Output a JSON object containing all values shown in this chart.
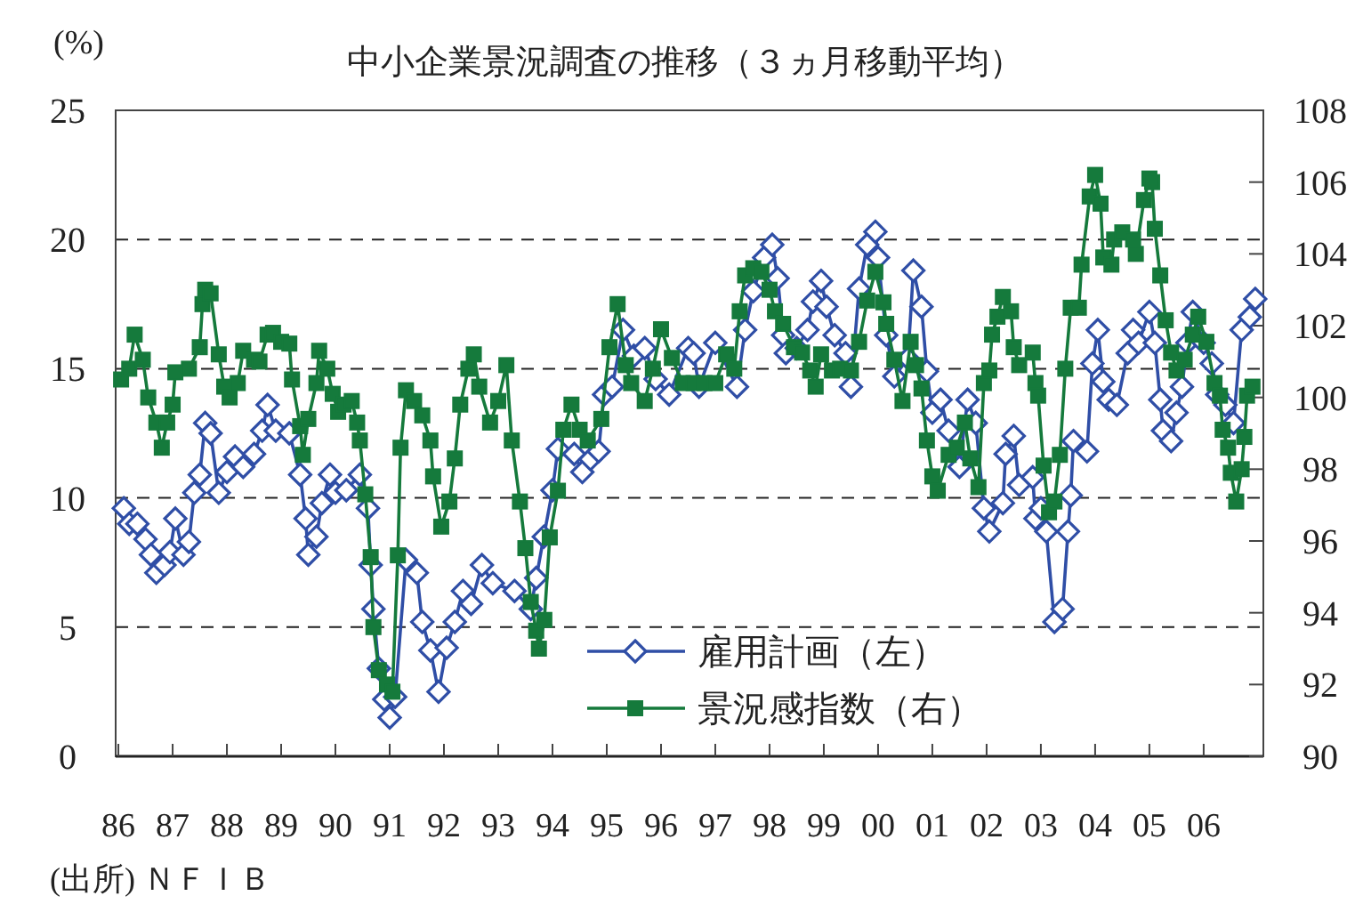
{
  "chart_data": {
    "type": "line",
    "title": "中小企業景況調査の推移（３ヵ月移動平均）",
    "ylabel": "(%)",
    "annotations": [
      "(出所) ＮＦＩＢ"
    ],
    "xlim": [
      1985.95,
      2007.1
    ],
    "xticks": [
      {
        "value": 1986,
        "label": "86"
      },
      {
        "value": 1987,
        "label": "87"
      },
      {
        "value": 1988,
        "label": "88"
      },
      {
        "value": 1989,
        "label": "89"
      },
      {
        "value": 1990,
        "label": "90"
      },
      {
        "value": 1991,
        "label": "91"
      },
      {
        "value": 1992,
        "label": "92"
      },
      {
        "value": 1993,
        "label": "93"
      },
      {
        "value": 1994,
        "label": "94"
      },
      {
        "value": 1995,
        "label": "95"
      },
      {
        "value": 1996,
        "label": "96"
      },
      {
        "value": 1997,
        "label": "97"
      },
      {
        "value": 1998,
        "label": "98"
      },
      {
        "value": 1999,
        "label": "99"
      },
      {
        "value": 2000,
        "label": "00"
      },
      {
        "value": 2001,
        "label": "01"
      },
      {
        "value": 2002,
        "label": "02"
      },
      {
        "value": 2003,
        "label": "03"
      },
      {
        "value": 2004,
        "label": "04"
      },
      {
        "value": 2005,
        "label": "05"
      },
      {
        "value": 2006,
        "label": "06"
      }
    ],
    "ylim": [
      0,
      25
    ],
    "yticks": [
      0,
      5,
      10,
      15,
      20,
      25
    ],
    "y2lim": [
      90,
      108
    ],
    "y2ticks": [
      90,
      92,
      94,
      96,
      98,
      100,
      102,
      104,
      106,
      108
    ],
    "grid": "y",
    "legend": "bottom",
    "series": [
      {
        "name": "雇用計画（左）",
        "color": "#2f4ea6",
        "marker": "diamond",
        "x": [
          1986.1,
          1986.2,
          1986.35,
          1986.5,
          1986.6,
          1986.7,
          1986.85,
          1986.95,
          1987.05,
          1987.2,
          1987.3,
          1987.4,
          1987.5,
          1987.6,
          1987.7,
          1987.85,
          1988.0,
          1988.15,
          1988.3,
          1988.5,
          1988.65,
          1988.75,
          1988.9,
          1989.15,
          1989.35,
          1989.45,
          1989.5,
          1989.65,
          1989.75,
          1989.9,
          1990.0,
          1990.2,
          1990.45,
          1990.6,
          1990.65,
          1990.7,
          1990.8,
          1990.9,
          1991.0,
          1991.1,
          1991.3,
          1991.5,
          1991.6,
          1991.75,
          1991.9,
          1992.05,
          1992.2,
          1992.35,
          1992.5,
          1992.7,
          1992.9,
          1993.3,
          1993.6,
          1993.7,
          1993.84,
          1994.0,
          1994.1,
          1994.4,
          1994.55,
          1994.7,
          1994.85,
          1994.95,
          1995.1,
          1995.3,
          1995.5,
          1995.7,
          1995.9,
          1996.15,
          1996.5,
          1996.6,
          1996.7,
          1997.0,
          1997.4,
          1997.55,
          1997.7,
          1997.9,
          1998.05,
          1998.15,
          1998.25,
          1998.3,
          1998.5,
          1998.7,
          1998.8,
          1998.95,
          1999.05,
          1999.2,
          1999.4,
          1999.5,
          1999.65,
          1999.8,
          1999.95,
          2000.0,
          2000.15,
          2000.3,
          2000.55,
          2000.65,
          2000.8,
          2000.9,
          2001.0,
          2001.15,
          2001.3,
          2001.5,
          2001.65,
          2001.8,
          2001.95,
          2002.05,
          2002.3,
          2002.35,
          2002.5,
          2002.6,
          2002.85,
          2002.9,
          2003.0,
          2003.1,
          2003.25,
          2003.4,
          2003.5,
          2003.55,
          2003.6,
          2003.85,
          2003.95,
          2004.05,
          2004.15,
          2004.25,
          2004.4,
          2004.6,
          2004.7,
          2004.8,
          2005.0,
          2005.1,
          2005.2,
          2005.25,
          2005.4,
          2005.5,
          2005.6,
          2005.7,
          2005.8,
          2006.0,
          2006.15,
          2006.25,
          2006.4,
          2006.55,
          2006.7,
          2006.85,
          2006.95
        ],
        "values": [
          9.6,
          9.0,
          9.0,
          8.4,
          7.8,
          7.1,
          7.4,
          7.9,
          9.2,
          7.8,
          8.3,
          10.2,
          10.9,
          12.9,
          12.5,
          10.2,
          11.0,
          11.6,
          11.2,
          11.7,
          12.6,
          13.6,
          12.6,
          12.5,
          10.9,
          9.2,
          7.8,
          8.5,
          9.8,
          10.9,
          10.2,
          10.3,
          10.9,
          9.6,
          7.4,
          5.7,
          3.4,
          2.2,
          1.5,
          2.3,
          7.6,
          7.1,
          5.2,
          4.1,
          2.5,
          4.2,
          5.2,
          6.4,
          5.9,
          7.4,
          6.7,
          6.4,
          5.7,
          6.9,
          8.5,
          10.3,
          11.9,
          11.7,
          11.0,
          11.5,
          11.8,
          14.0,
          14.3,
          16.5,
          15.5,
          15.8,
          14.6,
          14.0,
          15.8,
          15.6,
          14.3,
          16.0,
          14.3,
          16.5,
          18.0,
          19.3,
          19.8,
          18.5,
          16.3,
          15.6,
          15.8,
          16.5,
          17.6,
          18.4,
          17.4,
          16.3,
          15.6,
          14.3,
          18.1,
          19.8,
          20.3,
          19.3,
          16.3,
          14.7,
          15.4,
          18.8,
          17.4,
          14.9,
          13.3,
          13.8,
          12.6,
          11.2,
          13.8,
          12.9,
          9.6,
          8.7,
          9.8,
          11.7,
          12.4,
          10.5,
          10.8,
          9.2,
          9.6,
          8.7,
          5.2,
          5.7,
          8.7,
          10.1,
          12.2,
          11.8,
          15.2,
          16.5,
          14.5,
          13.8,
          13.6,
          15.6,
          16.5,
          16.0,
          17.2,
          16.0,
          13.8,
          12.6,
          12.2,
          13.3,
          14.3,
          16.0,
          17.2,
          16.0,
          15.2,
          14.0,
          13.6,
          12.9,
          16.5,
          17.0,
          17.7
        ]
      },
      {
        "name": "景況感指数（右）",
        "color": "#157a3c",
        "marker": "square",
        "axis": "y2",
        "x": [
          1986.05,
          1986.2,
          1986.3,
          1986.45,
          1986.55,
          1986.7,
          1986.8,
          1986.9,
          1987.0,
          1987.05,
          1987.3,
          1987.5,
          1987.55,
          1987.6,
          1987.7,
          1987.85,
          1987.95,
          1988.05,
          1988.2,
          1988.3,
          1988.5,
          1988.6,
          1988.75,
          1988.85,
          1989.0,
          1989.15,
          1989.2,
          1989.35,
          1989.4,
          1989.5,
          1989.65,
          1989.7,
          1989.85,
          1989.95,
          1990.05,
          1990.15,
          1990.3,
          1990.4,
          1990.45,
          1990.55,
          1990.65,
          1990.7,
          1990.8,
          1990.95,
          1991.05,
          1991.15,
          1991.2,
          1991.3,
          1991.45,
          1991.6,
          1991.75,
          1991.8,
          1991.95,
          1992.1,
          1992.2,
          1992.3,
          1992.45,
          1992.55,
          1992.65,
          1992.85,
          1993.0,
          1993.15,
          1993.25,
          1993.4,
          1993.5,
          1993.6,
          1993.7,
          1993.75,
          1993.85,
          1993.95,
          1994.1,
          1994.2,
          1994.35,
          1994.5,
          1994.65,
          1994.9,
          1995.05,
          1995.2,
          1995.35,
          1995.45,
          1995.7,
          1995.85,
          1996.0,
          1996.2,
          1996.4,
          1996.6,
          1996.8,
          1997.0,
          1997.2,
          1997.35,
          1997.45,
          1997.55,
          1997.7,
          1997.85,
          1998.0,
          1998.1,
          1998.25,
          1998.45,
          1998.6,
          1998.75,
          1998.85,
          1998.95,
          1999.15,
          1999.3,
          1999.5,
          1999.65,
          1999.8,
          1999.95,
          2000.1,
          2000.15,
          2000.3,
          2000.45,
          2000.6,
          2000.7,
          2000.8,
          2000.9,
          2001.0,
          2001.1,
          2001.3,
          2001.45,
          2001.6,
          2001.7,
          2001.85,
          2001.95,
          2002.05,
          2002.1,
          2002.2,
          2002.3,
          2002.45,
          2002.5,
          2002.6,
          2002.85,
          2002.9,
          2002.95,
          2003.05,
          2003.15,
          2003.25,
          2003.35,
          2003.45,
          2003.55,
          2003.7,
          2003.75,
          2003.9,
          2004.0,
          2004.1,
          2004.15,
          2004.3,
          2004.35,
          2004.5,
          2004.7,
          2004.75,
          2004.9,
          2005.0,
          2005.05,
          2005.1,
          2005.2,
          2005.3,
          2005.4,
          2005.5,
          2005.65,
          2005.8,
          2005.9,
          2006.05,
          2006.2,
          2006.3,
          2006.35,
          2006.45,
          2006.5,
          2006.6,
          2006.7,
          2006.75,
          2006.8,
          2006.9
        ],
        "values": [
          100.5,
          100.8,
          101.75,
          101.05,
          100.0,
          99.3,
          98.6,
          99.3,
          99.8,
          100.7,
          100.8,
          101.4,
          102.6,
          103.0,
          102.9,
          101.2,
          100.3,
          100.0,
          100.4,
          101.3,
          101.05,
          101.0,
          101.75,
          101.8,
          101.55,
          101.5,
          100.5,
          99.2,
          98.4,
          99.4,
          100.4,
          101.3,
          100.8,
          100.1,
          99.6,
          99.8,
          99.9,
          99.3,
          98.8,
          97.3,
          95.55,
          93.6,
          92.4,
          92.0,
          91.8,
          95.6,
          98.6,
          100.2,
          99.9,
          99.5,
          98.8,
          97.8,
          96.4,
          97.1,
          98.3,
          99.8,
          100.8,
          101.2,
          100.3,
          99.3,
          99.9,
          100.9,
          98.8,
          97.1,
          95.8,
          94.3,
          93.5,
          93.0,
          93.8,
          96.1,
          97.4,
          99.1,
          99.8,
          99.1,
          98.8,
          99.4,
          101.4,
          102.6,
          100.9,
          100.4,
          99.9,
          100.8,
          101.9,
          101.1,
          100.4,
          100.4,
          100.4,
          100.4,
          101.2,
          100.8,
          102.4,
          103.4,
          103.6,
          103.5,
          103.0,
          102.4,
          102.05,
          101.4,
          101.25,
          100.75,
          100.3,
          101.2,
          100.75,
          100.8,
          100.75,
          101.55,
          102.7,
          103.5,
          102.65,
          102.05,
          101.05,
          99.9,
          101.55,
          100.9,
          100.25,
          98.8,
          97.8,
          97.4,
          98.4,
          98.6,
          99.3,
          98.3,
          97.5,
          100.4,
          100.75,
          101.75,
          102.25,
          102.8,
          102.4,
          101.4,
          100.9,
          101.25,
          100.4,
          100.05,
          98.1,
          96.8,
          97.1,
          98.4,
          100.8,
          102.5,
          102.5,
          103.7,
          105.6,
          106.2,
          105.4,
          103.9,
          103.7,
          104.4,
          104.6,
          104.4,
          104.0,
          105.5,
          106.1,
          106.0,
          104.7,
          103.4,
          102.15,
          101.25,
          100.75,
          101.05,
          101.75,
          102.25,
          101.55,
          100.4,
          100.05,
          99.1,
          98.6,
          97.9,
          97.1,
          98.0,
          98.9,
          100.05,
          100.3
        ]
      }
    ]
  }
}
